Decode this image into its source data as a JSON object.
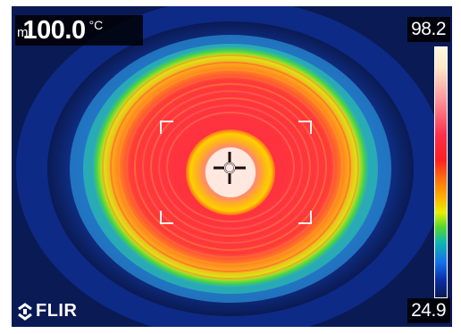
{
  "readout": {
    "mode_label": "m",
    "temperature": "100.0",
    "unit": "°C"
  },
  "scale": {
    "max": "98.2",
    "min": "24.9"
  },
  "branding": {
    "logo_text": "FLIR"
  },
  "palette": {
    "background": "#0a1a54",
    "hot": "#ff1f1f",
    "hottest": "#fff8e0",
    "warm": "#ffb000",
    "cool": "#10b7b0",
    "cold": "#1570ee"
  },
  "icons": {
    "crosshair": "spot-meter-crosshair-icon",
    "logo": "flir-logo-icon"
  }
}
